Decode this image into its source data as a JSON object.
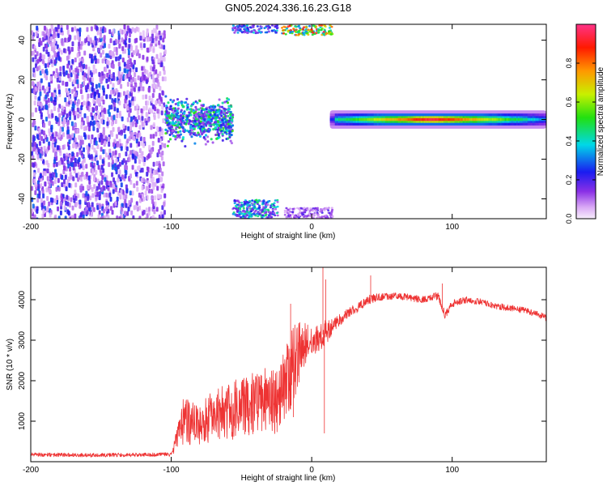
{
  "title": "GN05.2024.336.16.23.G18",
  "chart_data": [
    {
      "type": "heatmap",
      "xlabel": "Height of straight line (km)",
      "ylabel": "Frequency (Hz)",
      "xlim": [
        -200,
        167
      ],
      "ylim": [
        -50,
        48
      ],
      "xticks": [
        -200,
        -100,
        0,
        100
      ],
      "yticks": [
        -40,
        -20,
        0,
        20,
        40
      ],
      "grid": false,
      "colorbar": {
        "label": "Normalized spectral amplitude",
        "range": [
          0.0,
          1.0
        ],
        "ticks": [
          0.0,
          0.2,
          0.4,
          0.6,
          0.8
        ],
        "colormap": "rainbow (magenta-white low, purple, blue, cyan, green, yellow, red, pink high)"
      },
      "regions": [
        {
          "x": [
            -200,
            -105
          ],
          "y": [
            -50,
            48
          ],
          "amp": [
            0.05,
            0.3
          ],
          "kind": "noise"
        },
        {
          "x": [
            -105,
            -57
          ],
          "y": [
            -14,
            14
          ],
          "amp": [
            0.1,
            0.55
          ],
          "kind": "broadened-line"
        },
        {
          "x": [
            -57,
            -25
          ],
          "y": [
            -50,
            -40
          ],
          "amp": [
            0.1,
            0.5
          ],
          "kind": "aliased-band"
        },
        {
          "x": [
            -57,
            -25
          ],
          "y": [
            44,
            48
          ],
          "amp": [
            0.1,
            0.4
          ],
          "kind": "aliased-band"
        },
        {
          "x": [
            -22,
            14
          ],
          "y": [
            43,
            48
          ],
          "amp": [
            0.3,
            0.95
          ],
          "kind": "aliased-band"
        },
        {
          "x": [
            -20,
            14
          ],
          "y": [
            -50,
            -44
          ],
          "amp": [
            0.05,
            0.2
          ],
          "kind": "aliased-band"
        },
        {
          "x": [
            13,
            167
          ],
          "y": [
            -3,
            3
          ],
          "amp": [
            0.2,
            1.0
          ],
          "kind": "tone",
          "peak_x": 85
        }
      ]
    },
    {
      "type": "line",
      "xlabel": "Height of straight line (km)",
      "ylabel": "SNR (10 * v/v)",
      "xlim": [
        -200,
        167
      ],
      "ylim": [
        0,
        4800
      ],
      "xticks": [
        -200,
        -100,
        0,
        100
      ],
      "yticks": [
        1000,
        2000,
        3000,
        4000
      ],
      "grid": false,
      "series": [
        {
          "color": "#ee3333",
          "x": [
            -200,
            -180,
            -160,
            -140,
            -120,
            -100,
            -92,
            -85,
            -75,
            -60,
            -45,
            -35,
            -25,
            -20,
            -15,
            -10,
            -5,
            0,
            5,
            10,
            15,
            20,
            25,
            30,
            35,
            40,
            50,
            60,
            70,
            80,
            90,
            95,
            100,
            110,
            120,
            130,
            140,
            150,
            160,
            167
          ],
          "y": [
            180,
            170,
            160,
            165,
            170,
            180,
            900,
            850,
            900,
            1100,
            1200,
            1400,
            1300,
            1600,
            2000,
            2700,
            2900,
            3000,
            3050,
            3200,
            3350,
            3500,
            3650,
            3750,
            3850,
            4000,
            4080,
            4100,
            4050,
            4000,
            4100,
            3600,
            3900,
            4000,
            3950,
            3850,
            3800,
            3750,
            3650,
            3550
          ],
          "noise": [
            60,
            60,
            60,
            60,
            60,
            60,
            600,
            500,
            550,
            650,
            700,
            750,
            700,
            850,
            900,
            700,
            400,
            300,
            250,
            250,
            200,
            180,
            150,
            150,
            150,
            150,
            120,
            110,
            110,
            110,
            120,
            150,
            120,
            100,
            100,
            100,
            100,
            100,
            100,
            100
          ]
        }
      ]
    }
  ]
}
